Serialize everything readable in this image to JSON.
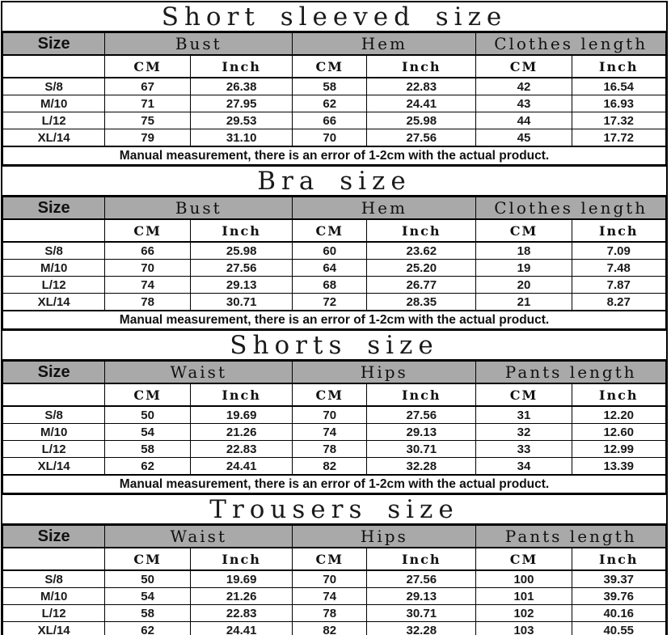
{
  "colors": {
    "header_bg": "#a9a9a9",
    "border": "#000000",
    "background": "#ffffff",
    "text": "#111111"
  },
  "labels": {
    "size": "Size",
    "cm": "CM",
    "inch": "Inch"
  },
  "note": "Manual measurement, there is an error of 1-2cm with the actual product.",
  "tables": [
    {
      "title": "Short sleeved size",
      "groups": [
        "Bust",
        "Hem",
        "Clothes length"
      ],
      "rows": [
        {
          "size": "S/8",
          "values": [
            "67",
            "26.38",
            "58",
            "22.83",
            "42",
            "16.54"
          ]
        },
        {
          "size": "M/10",
          "values": [
            "71",
            "27.95",
            "62",
            "24.41",
            "43",
            "16.93"
          ]
        },
        {
          "size": "L/12",
          "values": [
            "75",
            "29.53",
            "66",
            "25.98",
            "44",
            "17.32"
          ]
        },
        {
          "size": "XL/14",
          "values": [
            "79",
            "31.10",
            "70",
            "27.56",
            "45",
            "17.72"
          ]
        }
      ]
    },
    {
      "title": "Bra size",
      "groups": [
        "Bust",
        "Hem",
        "Clothes length"
      ],
      "rows": [
        {
          "size": "S/8",
          "values": [
            "66",
            "25.98",
            "60",
            "23.62",
            "18",
            "7.09"
          ]
        },
        {
          "size": "M/10",
          "values": [
            "70",
            "27.56",
            "64",
            "25.20",
            "19",
            "7.48"
          ]
        },
        {
          "size": "L/12",
          "values": [
            "74",
            "29.13",
            "68",
            "26.77",
            "20",
            "7.87"
          ]
        },
        {
          "size": "XL/14",
          "values": [
            "78",
            "30.71",
            "72",
            "28.35",
            "21",
            "8.27"
          ]
        }
      ]
    },
    {
      "title": "Shorts size",
      "groups": [
        "Waist",
        "Hips",
        "Pants length"
      ],
      "rows": [
        {
          "size": "S/8",
          "values": [
            "50",
            "19.69",
            "70",
            "27.56",
            "31",
            "12.20"
          ]
        },
        {
          "size": "M/10",
          "values": [
            "54",
            "21.26",
            "74",
            "29.13",
            "32",
            "12.60"
          ]
        },
        {
          "size": "L/12",
          "values": [
            "58",
            "22.83",
            "78",
            "30.71",
            "33",
            "12.99"
          ]
        },
        {
          "size": "XL/14",
          "values": [
            "62",
            "24.41",
            "82",
            "32.28",
            "34",
            "13.39"
          ]
        }
      ]
    },
    {
      "title": "Trousers size",
      "groups": [
        "Waist",
        "Hips",
        "Pants length"
      ],
      "rows": [
        {
          "size": "S/8",
          "values": [
            "50",
            "19.69",
            "70",
            "27.56",
            "100",
            "39.37"
          ]
        },
        {
          "size": "M/10",
          "values": [
            "54",
            "21.26",
            "74",
            "29.13",
            "101",
            "39.76"
          ]
        },
        {
          "size": "L/12",
          "values": [
            "58",
            "22.83",
            "78",
            "30.71",
            "102",
            "40.16"
          ]
        },
        {
          "size": "XL/14",
          "values": [
            "62",
            "24.41",
            "82",
            "32.28",
            "103",
            "40.55"
          ]
        }
      ]
    }
  ]
}
